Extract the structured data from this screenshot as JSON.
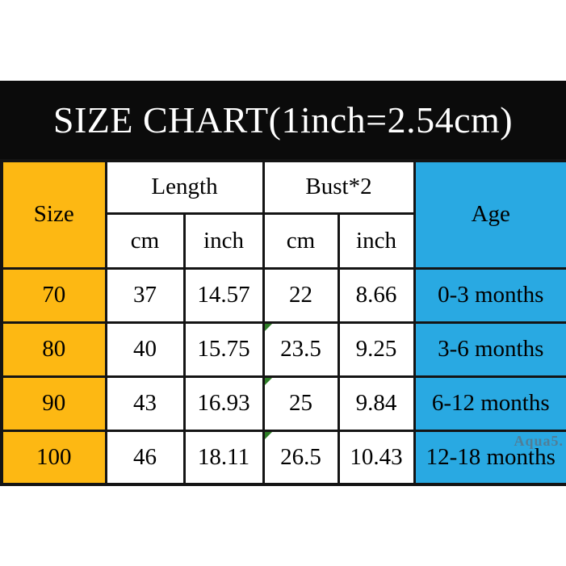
{
  "banner": {
    "title": "SIZE CHART(1inch=2.54cm)"
  },
  "watermark": "Aqua5.",
  "colors": {
    "banner_bg": "#0b0b0b",
    "size_column_yellow": "#fdb813",
    "age_column_blue": "#29a9e2",
    "border_black": "#141414",
    "flag_green": "#2e7d27"
  },
  "table": {
    "size_header": "Size",
    "age_header": "Age",
    "group_headers": {
      "length": "Length",
      "bust": "Bust*2"
    },
    "unit_headers": [
      "cm",
      "inch",
      "cm",
      "inch"
    ],
    "rows": [
      {
        "size": "70",
        "length_cm": "37",
        "length_inch": "14.57",
        "bust_cm": "22",
        "bust_inch": "8.66",
        "age": "0-3 months"
      },
      {
        "size": "80",
        "length_cm": "40",
        "length_inch": "15.75",
        "bust_cm": "23.5",
        "bust_inch": "9.25",
        "age": "3-6 months"
      },
      {
        "size": "90",
        "length_cm": "43",
        "length_inch": "16.93",
        "bust_cm": "25",
        "bust_inch": "9.84",
        "age": "6-12 months"
      },
      {
        "size": "100",
        "length_cm": "46",
        "length_inch": "18.11",
        "bust_cm": "26.5",
        "bust_inch": "10.43",
        "age": "12-18 months"
      }
    ]
  }
}
